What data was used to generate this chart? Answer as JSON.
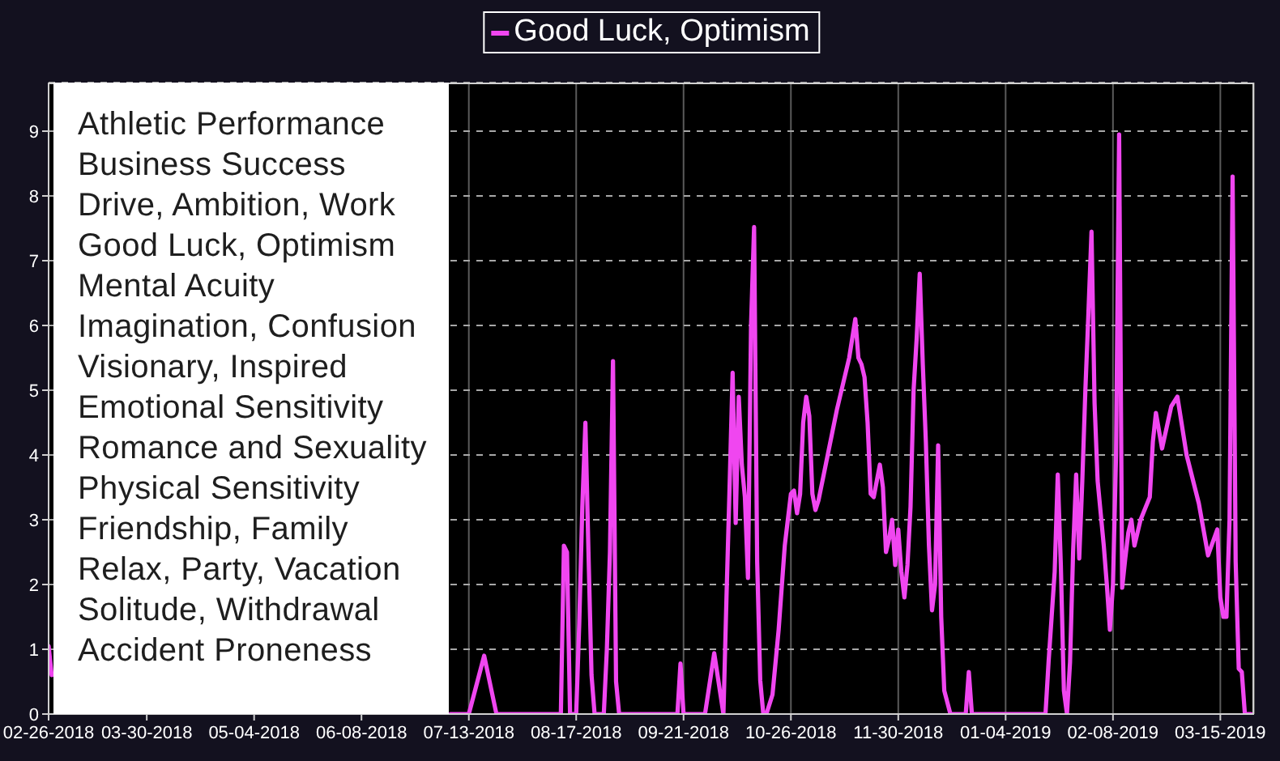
{
  "chart_data": {
    "type": "line",
    "x": [
      "2018-02-26",
      "2018-02-27",
      "2018-02-28",
      "2018-07-07",
      "2018-07-13",
      "2018-07-18",
      "2018-07-22",
      "2018-08-12",
      "2018-08-13",
      "2018-08-14",
      "2018-08-15",
      "2018-08-17",
      "2018-08-18",
      "2018-08-19",
      "2018-08-20",
      "2018-08-21",
      "2018-08-22",
      "2018-08-23",
      "2018-08-26",
      "2018-08-27",
      "2018-08-28",
      "2018-08-29",
      "2018-08-30",
      "2018-08-31",
      "2018-09-19",
      "2018-09-20",
      "2018-09-21",
      "2018-09-28",
      "2018-10-01",
      "2018-10-04",
      "2018-10-05",
      "2018-10-06",
      "2018-10-07",
      "2018-10-08",
      "2018-10-09",
      "2018-10-10",
      "2018-10-11",
      "2018-10-12",
      "2018-10-13",
      "2018-10-14",
      "2018-10-15",
      "2018-10-16",
      "2018-10-17",
      "2018-10-18",
      "2018-10-20",
      "2018-10-22",
      "2018-10-24",
      "2018-10-26",
      "2018-10-27",
      "2018-10-28",
      "2018-10-29",
      "2018-10-30",
      "2018-10-31",
      "2018-11-01",
      "2018-11-02",
      "2018-11-03",
      "2018-11-04",
      "2018-11-07",
      "2018-11-10",
      "2018-11-14",
      "2018-11-16",
      "2018-11-17",
      "2018-11-18",
      "2018-11-19",
      "2018-11-20",
      "2018-11-21",
      "2018-11-22",
      "2018-11-24",
      "2018-11-25",
      "2018-11-26",
      "2018-11-27",
      "2018-11-28",
      "2018-11-29",
      "2018-11-30",
      "2018-12-01",
      "2018-12-02",
      "2018-12-03",
      "2018-12-04",
      "2018-12-05",
      "2018-12-06",
      "2018-12-07",
      "2018-12-08",
      "2018-12-09",
      "2018-12-10",
      "2018-12-11",
      "2018-12-12",
      "2018-12-13",
      "2018-12-14",
      "2018-12-15",
      "2018-12-17",
      "2018-12-22",
      "2018-12-23",
      "2018-12-24",
      "2019-01-17",
      "2019-01-18",
      "2019-01-19",
      "2019-01-20",
      "2019-01-21",
      "2019-01-22",
      "2019-01-23",
      "2019-01-24",
      "2019-01-25",
      "2019-01-26",
      "2019-01-27",
      "2019-01-28",
      "2019-01-29",
      "2019-01-30",
      "2019-01-31",
      "2019-02-01",
      "2019-02-02",
      "2019-02-03",
      "2019-02-04",
      "2019-02-05",
      "2019-02-06",
      "2019-02-07",
      "2019-02-08",
      "2019-02-09",
      "2019-02-10",
      "2019-02-11",
      "2019-02-12",
      "2019-02-13",
      "2019-02-14",
      "2019-02-15",
      "2019-02-17",
      "2019-02-20",
      "2019-02-21",
      "2019-02-22",
      "2019-02-24",
      "2019-02-27",
      "2019-03-01",
      "2019-03-04",
      "2019-03-08",
      "2019-03-11",
      "2019-03-14",
      "2019-03-15",
      "2019-03-16",
      "2019-03-17",
      "2019-03-18",
      "2019-03-19",
      "2019-03-20",
      "2019-03-21",
      "2019-03-22",
      "2019-03-23",
      "2019-03-25"
    ],
    "series": [
      {
        "name": "Good Luck, Optimism",
        "color": "#f046f0",
        "values": [
          1.05,
          0.6,
          null,
          0,
          0,
          0.9,
          0,
          0,
          2.6,
          2.5,
          0,
          0,
          1.4,
          3.2,
          4.5,
          2.5,
          0.6,
          0,
          0,
          1.0,
          2.5,
          5.45,
          0.5,
          0,
          0,
          0.78,
          0,
          0,
          0.94,
          0,
          1.8,
          3.5,
          5.27,
          2.95,
          4.9,
          3.85,
          3.35,
          2.1,
          6.0,
          7.52,
          2.35,
          0.52,
          0,
          0,
          0.3,
          1.3,
          2.6,
          3.4,
          3.45,
          3.1,
          3.4,
          4.5,
          4.9,
          4.6,
          3.4,
          3.15,
          3.3,
          4.0,
          4.7,
          5.5,
          6.1,
          5.5,
          5.4,
          5.2,
          4.5,
          3.4,
          3.35,
          3.85,
          3.5,
          2.5,
          2.7,
          3.0,
          2.3,
          2.85,
          2.2,
          1.8,
          2.3,
          3.2,
          5.0,
          5.8,
          6.8,
          5.4,
          4.2,
          2.6,
          1.6,
          2.0,
          4.15,
          1.5,
          0.36,
          0,
          0,
          0.65,
          0,
          0,
          0.8,
          1.5,
          2.2,
          3.7,
          2.3,
          0.36,
          0,
          0.8,
          2.5,
          3.7,
          2.4,
          3.6,
          5.0,
          6.2,
          7.45,
          4.8,
          3.6,
          3.1,
          2.6,
          2.0,
          1.3,
          2.0,
          4.0,
          8.95,
          1.95,
          2.4,
          2.8,
          3.0,
          2.6,
          3.0,
          3.35,
          4.2,
          4.65,
          4.1,
          4.75,
          4.9,
          4.0,
          3.25,
          2.45,
          2.85,
          1.8,
          1.5,
          1.5,
          3.0,
          8.3,
          2.35,
          0.7,
          0.65,
          0,
          0
        ]
      }
    ],
    "xlim": [
      "2018-02-26",
      "2019-03-26"
    ],
    "xticks": [
      {
        "value": "2018-02-26",
        "label": "02-26-2018"
      },
      {
        "value": "2018-03-30",
        "label": "03-30-2018"
      },
      {
        "value": "2018-05-04",
        "label": "05-04-2018"
      },
      {
        "value": "2018-06-08",
        "label": "06-08-2018"
      },
      {
        "value": "2018-07-13",
        "label": "07-13-2018"
      },
      {
        "value": "2018-08-17",
        "label": "08-17-2018"
      },
      {
        "value": "2018-09-21",
        "label": "09-21-2018"
      },
      {
        "value": "2018-10-26",
        "label": "10-26-2018"
      },
      {
        "value": "2018-11-30",
        "label": "11-30-2018"
      },
      {
        "value": "2019-01-04",
        "label": "01-04-2019"
      },
      {
        "value": "2019-02-08",
        "label": "02-08-2019"
      },
      {
        "value": "2019-03-15",
        "label": "03-15-2019"
      }
    ],
    "ylim": [
      0,
      9.75
    ],
    "yticks": [
      0,
      1,
      2,
      3,
      4,
      5,
      6,
      7,
      8,
      9
    ],
    "grid": true,
    "legend": "top",
    "marker": "none",
    "line_style": "solid",
    "annotations": [
      "Athletic Performance",
      "Business Success",
      "Drive, Ambition, Work",
      "Good Luck, Optimism",
      "Mental Acuity",
      "Imagination, Confusion",
      "Visionary, Inspired",
      "Emotional Sensitivity",
      "Romance and Sexuality",
      "Physical Sensitivity",
      "Friendship, Family",
      "Relax, Party, Vacation",
      "Solitude, Withdrawal",
      "Accident Proneness"
    ]
  }
}
